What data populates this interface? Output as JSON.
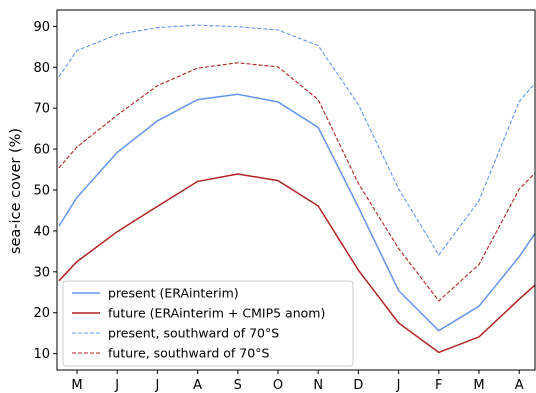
{
  "chart_data": {
    "type": "line",
    "title": "",
    "xlabel": "",
    "ylabel": "sea-ice cover (%)",
    "categories": [
      "M",
      "J",
      "J",
      "A",
      "S",
      "O",
      "N",
      "D",
      "J",
      "F",
      "M",
      "A"
    ],
    "ylim": [
      6,
      94
    ],
    "yticks": [
      10,
      20,
      30,
      40,
      50,
      60,
      70,
      80,
      90
    ],
    "grid": false,
    "legend_position": "lower-left",
    "series": [
      {
        "name": "present (ERAinterim)",
        "color": "#6495ED",
        "linestyle": "solid",
        "x": [
          -0.45,
          0,
          1,
          2,
          3,
          4,
          5,
          6,
          7,
          8,
          9,
          10,
          11,
          11.45
        ],
        "values": [
          41.2,
          48.2,
          59.2,
          66.9,
          72.1,
          73.4,
          71.5,
          65.3,
          45.8,
          25.4,
          15.6,
          21.6,
          33.7,
          40.2
        ]
      },
      {
        "name": "future (ERAinterim + CMIP5 anom)",
        "color": "#B22222",
        "linestyle": "solid",
        "x": [
          -0.45,
          0,
          1,
          2,
          3,
          4,
          5,
          6,
          7,
          8,
          9,
          10,
          11,
          11.45
        ],
        "values": [
          27.8,
          32.5,
          39.8,
          46.0,
          52.1,
          53.9,
          52.3,
          46.1,
          30.4,
          17.5,
          10.3,
          14.1,
          23.3,
          27.3
        ]
      },
      {
        "name": "present, southward of 70°S",
        "color": "#6495ED",
        "linestyle": "dashed",
        "x": [
          -0.45,
          0,
          1,
          2,
          3,
          4,
          5,
          6,
          7,
          8,
          9,
          10,
          11,
          11.45
        ],
        "values": [
          77.7,
          84.1,
          88.0,
          89.7,
          90.3,
          89.9,
          89.1,
          85.3,
          70.9,
          50.3,
          34.1,
          47.4,
          71.6,
          76.8
        ]
      },
      {
        "name": "future, southward of 70°S",
        "color": "#B22222",
        "linestyle": "dashed",
        "x": [
          -0.45,
          0,
          1,
          2,
          3,
          4,
          5,
          6,
          7,
          8,
          9,
          10,
          11,
          11.45
        ],
        "values": [
          55.4,
          60.5,
          68.3,
          75.5,
          79.8,
          81.1,
          80.1,
          72.1,
          51.6,
          35.7,
          22.9,
          31.8,
          50.2,
          54.7
        ]
      }
    ]
  }
}
